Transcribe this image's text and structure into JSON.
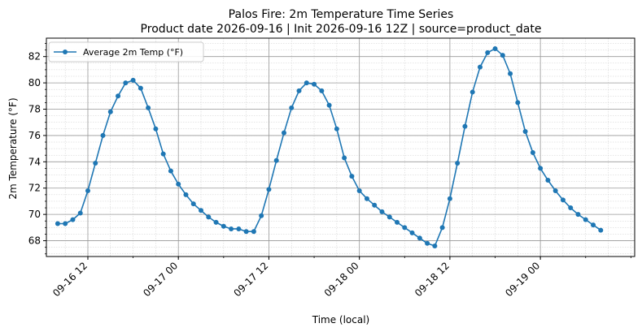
{
  "chart_data": {
    "type": "line",
    "title": "Palos Fire: 2m Temperature Time Series",
    "subtitle": "Product date 2026-09-16 | Init 2026-09-16 12Z | source=product_date",
    "xlabel": "Time (local)",
    "ylabel": "2m Temperature (°F)",
    "x_range": [
      "2026-09-16T06:30",
      "2026-09-19T12:30"
    ],
    "ylim": [
      66.8,
      83.4
    ],
    "grid": true,
    "legend_position": "upper-left",
    "x_tick_labels": [
      {
        "x": "2026-09-16T12:00",
        "label": "09-16 12"
      },
      {
        "x": "2026-09-17T00:00",
        "label": "09-17 00"
      },
      {
        "x": "2026-09-17T12:00",
        "label": "09-17 12"
      },
      {
        "x": "2026-09-18T00:00",
        "label": "09-18 00"
      },
      {
        "x": "2026-09-18T12:00",
        "label": "09-18 12"
      },
      {
        "x": "2026-09-19T00:00",
        "label": "09-19 00"
      }
    ],
    "y_ticks": [
      68,
      70,
      72,
      74,
      76,
      78,
      80,
      82
    ],
    "series": [
      {
        "name": "Average 2m Temp (°F)",
        "color": "#1f77b4",
        "points": [
          [
            "2026-09-16T08:00",
            69.3
          ],
          [
            "2026-09-16T09:00",
            69.3
          ],
          [
            "2026-09-16T10:00",
            69.6
          ],
          [
            "2026-09-16T11:00",
            70.1
          ],
          [
            "2026-09-16T12:00",
            71.8
          ],
          [
            "2026-09-16T13:00",
            73.9
          ],
          [
            "2026-09-16T14:00",
            76.0
          ],
          [
            "2026-09-16T15:00",
            77.8
          ],
          [
            "2026-09-16T16:00",
            79.0
          ],
          [
            "2026-09-16T17:00",
            80.0
          ],
          [
            "2026-09-16T18:00",
            80.2
          ],
          [
            "2026-09-16T19:00",
            79.6
          ],
          [
            "2026-09-16T20:00",
            78.1
          ],
          [
            "2026-09-16T21:00",
            76.5
          ],
          [
            "2026-09-16T22:00",
            74.6
          ],
          [
            "2026-09-16T23:00",
            73.3
          ],
          [
            "2026-09-17T00:00",
            72.3
          ],
          [
            "2026-09-17T01:00",
            71.5
          ],
          [
            "2026-09-17T02:00",
            70.8
          ],
          [
            "2026-09-17T03:00",
            70.3
          ],
          [
            "2026-09-17T04:00",
            69.8
          ],
          [
            "2026-09-17T05:00",
            69.4
          ],
          [
            "2026-09-17T06:00",
            69.1
          ],
          [
            "2026-09-17T07:00",
            68.9
          ],
          [
            "2026-09-17T08:00",
            68.9
          ],
          [
            "2026-09-17T09:00",
            68.7
          ],
          [
            "2026-09-17T10:00",
            68.7
          ],
          [
            "2026-09-17T11:00",
            69.9
          ],
          [
            "2026-09-17T12:00",
            71.9
          ],
          [
            "2026-09-17T13:00",
            74.1
          ],
          [
            "2026-09-17T14:00",
            76.2
          ],
          [
            "2026-09-17T15:00",
            78.1
          ],
          [
            "2026-09-17T16:00",
            79.4
          ],
          [
            "2026-09-17T17:00",
            80.0
          ],
          [
            "2026-09-17T18:00",
            79.9
          ],
          [
            "2026-09-17T19:00",
            79.4
          ],
          [
            "2026-09-17T20:00",
            78.3
          ],
          [
            "2026-09-17T21:00",
            76.5
          ],
          [
            "2026-09-17T22:00",
            74.3
          ],
          [
            "2026-09-17T23:00",
            72.9
          ],
          [
            "2026-09-18T00:00",
            71.8
          ],
          [
            "2026-09-18T01:00",
            71.2
          ],
          [
            "2026-09-18T02:00",
            70.7
          ],
          [
            "2026-09-18T03:00",
            70.2
          ],
          [
            "2026-09-18T04:00",
            69.8
          ],
          [
            "2026-09-18T05:00",
            69.4
          ],
          [
            "2026-09-18T06:00",
            69.0
          ],
          [
            "2026-09-18T07:00",
            68.6
          ],
          [
            "2026-09-18T08:00",
            68.2
          ],
          [
            "2026-09-18T09:00",
            67.8
          ],
          [
            "2026-09-18T10:00",
            67.6
          ],
          [
            "2026-09-18T11:00",
            69.0
          ],
          [
            "2026-09-18T12:00",
            71.2
          ],
          [
            "2026-09-18T13:00",
            73.9
          ],
          [
            "2026-09-18T14:00",
            76.7
          ],
          [
            "2026-09-18T15:00",
            79.3
          ],
          [
            "2026-09-18T16:00",
            81.2
          ],
          [
            "2026-09-18T17:00",
            82.3
          ],
          [
            "2026-09-18T18:00",
            82.6
          ],
          [
            "2026-09-18T19:00",
            82.1
          ],
          [
            "2026-09-18T20:00",
            80.7
          ],
          [
            "2026-09-18T21:00",
            78.5
          ],
          [
            "2026-09-18T22:00",
            76.3
          ],
          [
            "2026-09-18T23:00",
            74.7
          ],
          [
            "2026-09-19T00:00",
            73.5
          ],
          [
            "2026-09-19T01:00",
            72.6
          ],
          [
            "2026-09-19T02:00",
            71.8
          ],
          [
            "2026-09-19T03:00",
            71.1
          ],
          [
            "2026-09-19T04:00",
            70.5
          ],
          [
            "2026-09-19T05:00",
            70.0
          ],
          [
            "2026-09-19T06:00",
            69.6
          ],
          [
            "2026-09-19T07:00",
            69.2
          ],
          [
            "2026-09-19T08:00",
            68.8
          ]
        ]
      }
    ]
  }
}
